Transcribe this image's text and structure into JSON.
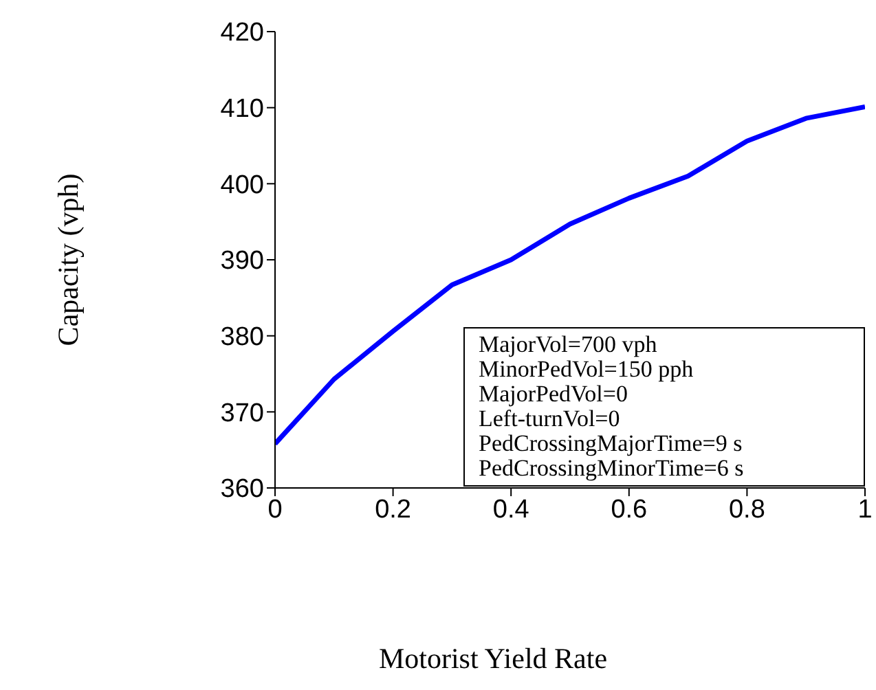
{
  "chart_data": {
    "type": "line",
    "xlabel": "Motorist Yield Rate",
    "ylabel": "Capacity (vph)",
    "x": [
      0,
      0.1,
      0.2,
      0.3,
      0.4,
      0.5,
      0.6,
      0.7,
      0.8,
      0.9,
      1
    ],
    "series": [
      {
        "color": "#0000ff",
        "values": [
          365.8,
          374.3,
          380.6,
          386.7,
          390.0,
          394.7,
          398.1,
          401.0,
          405.6,
          408.6,
          410.1
        ]
      }
    ],
    "xlim": [
      0,
      1
    ],
    "xticks": [
      0,
      0.2,
      0.4,
      0.6,
      0.8,
      1
    ],
    "ylim": [
      360,
      420
    ],
    "yticks": [
      360,
      370,
      380,
      390,
      400,
      410,
      420
    ],
    "grid": false,
    "legend": false,
    "marker": "none",
    "line_style": "solid",
    "annotations": [
      "MajorVol=700 vph",
      "MinorPedVol=150 pph",
      "MajorPedVol=0",
      "Left-turnVol=0",
      "PedCrossingMajorTime=9 s",
      "PedCrossingMinorTime=6 s"
    ]
  }
}
